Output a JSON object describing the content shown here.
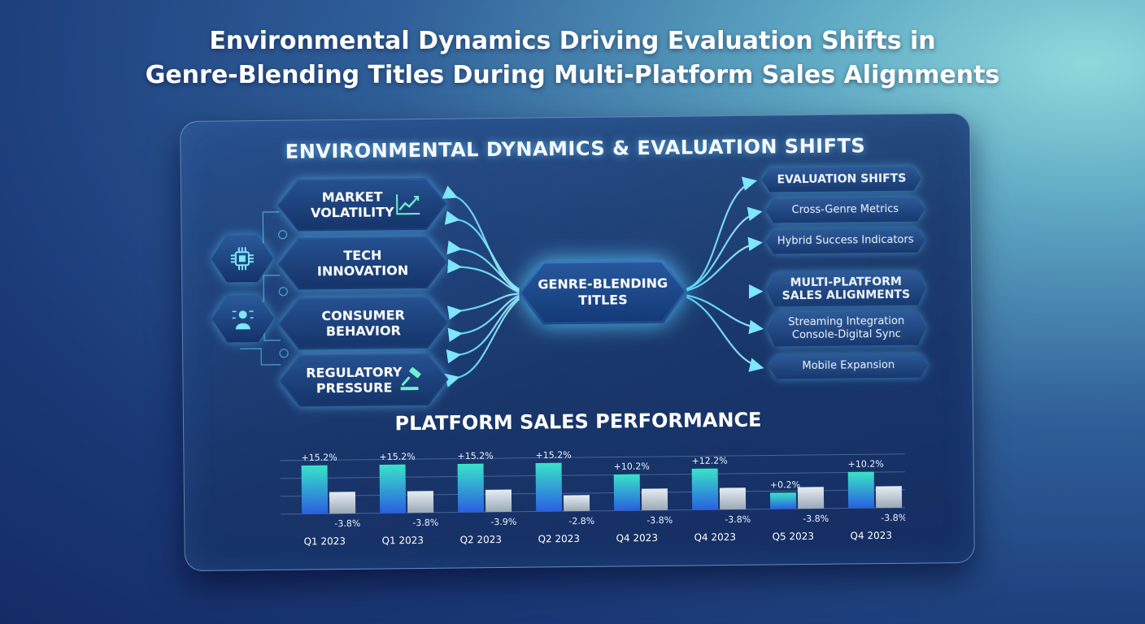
{
  "page": {
    "title_line1": "Environmental Dynamics Driving Evaluation Shifts in",
    "title_line2": "Genre-Blending Titles During Multi-Platform Sales Alignments"
  },
  "panel": {
    "title": "ENVIRONMENTAL DYNAMICS & EVALUATION SHIFTS"
  },
  "drivers": [
    {
      "label_line1": "MARKET",
      "label_line2": "VOLATILITY",
      "icon": "trend-chart-icon"
    },
    {
      "label_line1": "TECH",
      "label_line2": "INNOVATION",
      "icon": ""
    },
    {
      "label_line1": "CONSUMER",
      "label_line2": "BEHAVIOR",
      "icon": ""
    },
    {
      "label_line1": "REGULATORY",
      "label_line2": "PRESSURE",
      "icon": "gavel-icon"
    }
  ],
  "side_icons": [
    "chip-icon",
    "user-network-icon"
  ],
  "center": {
    "label_line1": "GENRE-BLENDING",
    "label_line2": "TITLES"
  },
  "outcomes": [
    {
      "line1": "EVALUATION SHIFTS",
      "line2": "",
      "bold": true
    },
    {
      "line1": "Cross-Genre Metrics",
      "line2": "",
      "bold": false
    },
    {
      "line1": "Hybrid Success Indicators",
      "line2": "",
      "bold": false
    },
    {
      "line1": "MULTI-PLATFORM",
      "line2": "SALES ALIGNMENTS",
      "bold": true
    },
    {
      "line1": "Streaming Integration",
      "line2": "Console-Digital Sync",
      "bold": false
    },
    {
      "line1": "Mobile Expansion",
      "line2": "",
      "bold": false
    }
  ],
  "colors": {
    "accent_cyan": "#5fe0ff",
    "bar_gradient_top": "#39e3c8",
    "bar_gradient_bottom": "#2a5fe0",
    "bar_secondary": "#c9d3dc"
  },
  "chart_data": {
    "type": "bar",
    "title": "PLATFORM SALES PERFORMANCE",
    "categories": [
      "Q1 2023",
      "Q1 2023",
      "Q2 2023",
      "Q2 2023",
      "Q4 2023",
      "Q4 2023",
      "Q5 2023",
      "Q4 2023"
    ],
    "series": [
      {
        "values": [
          15.2,
          15.2,
          15.2,
          15.2,
          10.2,
          12.2,
          0.2,
          10.2
        ],
        "labels": [
          "+15.2%",
          "+15.2%",
          "+15.2%",
          "+15.2%",
          "+10.2%",
          "+12.2%",
          "+0.2%",
          "+10.2%"
        ]
      },
      {
        "values": [
          -3.8,
          -3.8,
          -3.9,
          -2.8,
          -3.8,
          -3.8,
          -3.8,
          -3.8
        ],
        "labels": [
          "-3.8%",
          "-3.8%",
          "-3.9%",
          "-2.8%",
          "-3.8%",
          "-3.8%",
          "-3.8%",
          "-3.8%"
        ]
      }
    ],
    "grid": true,
    "legend": "none"
  }
}
